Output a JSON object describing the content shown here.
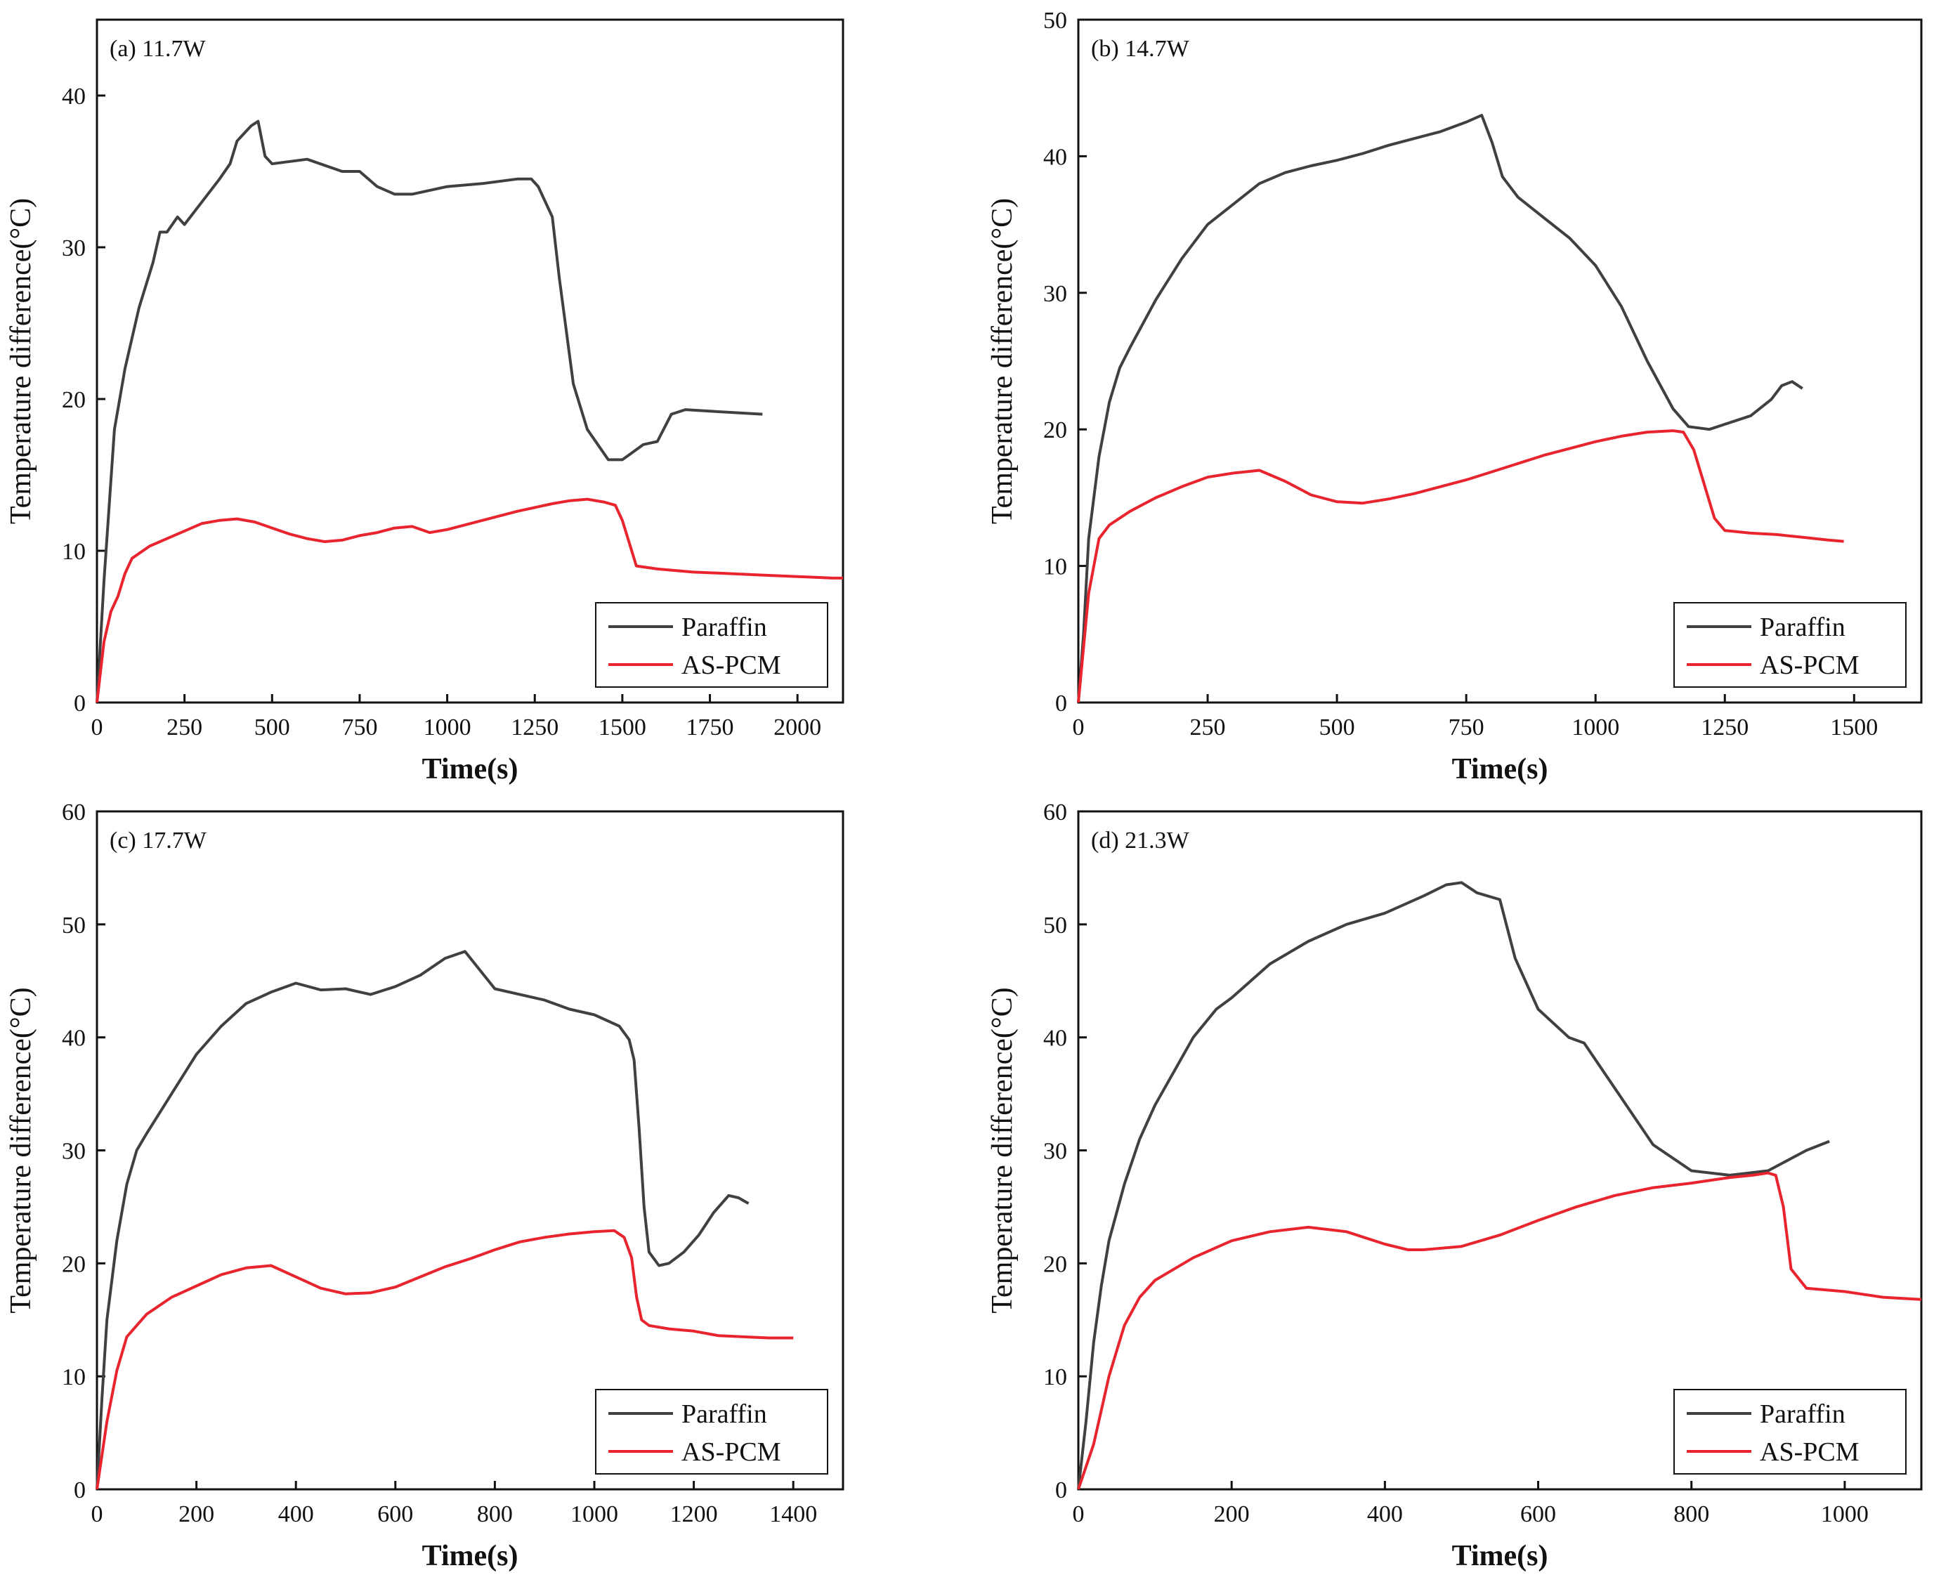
{
  "colors": {
    "paraffin": "#404040",
    "as_pcm": "#e8252e",
    "axis": "#111111"
  },
  "chart_data": [
    {
      "type": "line",
      "panel_label": "(a) 11.7W",
      "xlabel": "Time(s)",
      "ylabel": "Temperature difference(°C)",
      "xlim": [
        0,
        2130
      ],
      "ylim": [
        0,
        45
      ],
      "xticks": [
        0,
        250,
        500,
        750,
        1000,
        1250,
        1500,
        1750,
        2000
      ],
      "yticks": [
        0,
        10,
        20,
        30,
        40
      ],
      "legend": [
        "Paraffin",
        "AS-PCM"
      ],
      "series": [
        {
          "name": "Paraffin",
          "color": "#404040",
          "x": [
            0,
            20,
            50,
            80,
            120,
            160,
            180,
            200,
            230,
            250,
            300,
            350,
            380,
            400,
            420,
            440,
            460,
            480,
            500,
            600,
            700,
            750,
            800,
            850,
            900,
            1000,
            1100,
            1200,
            1240,
            1260,
            1300,
            1320,
            1360,
            1400,
            1460,
            1500,
            1560,
            1600,
            1640,
            1680,
            1750,
            1900
          ],
          "y": [
            0,
            8,
            18,
            22,
            26,
            29,
            31,
            31,
            32,
            31.5,
            33,
            34.5,
            35.5,
            37,
            37.5,
            38,
            38.3,
            36,
            35.5,
            35.8,
            35,
            35,
            34,
            33.5,
            33.5,
            34,
            34.2,
            34.5,
            34.5,
            34,
            32,
            28,
            21,
            18,
            16,
            16,
            17,
            17.2,
            19,
            19.3,
            19.2,
            19
          ]
        },
        {
          "name": "AS-PCM",
          "color": "#e8252e",
          "x": [
            0,
            20,
            40,
            60,
            80,
            100,
            150,
            200,
            250,
            300,
            350,
            400,
            450,
            500,
            550,
            600,
            650,
            700,
            750,
            800,
            850,
            900,
            950,
            1000,
            1100,
            1200,
            1300,
            1350,
            1400,
            1450,
            1480,
            1500,
            1520,
            1540,
            1600,
            1700,
            1800,
            1900,
            2000,
            2100,
            2130
          ],
          "y": [
            0,
            4,
            6,
            7,
            8.5,
            9.5,
            10.3,
            10.8,
            11.3,
            11.8,
            12,
            12.1,
            11.9,
            11.5,
            11.1,
            10.8,
            10.6,
            10.7,
            11,
            11.2,
            11.5,
            11.6,
            11.2,
            11.4,
            12,
            12.6,
            13.1,
            13.3,
            13.4,
            13.2,
            13,
            12,
            10.5,
            9,
            8.8,
            8.6,
            8.5,
            8.4,
            8.3,
            8.2,
            8.2
          ]
        }
      ]
    },
    {
      "type": "line",
      "panel_label": "(b) 14.7W",
      "xlabel": "Time(s)",
      "ylabel": "Temperature difference(°C)",
      "xlim": [
        0,
        1630
      ],
      "ylim": [
        0,
        50
      ],
      "xticks": [
        0,
        250,
        500,
        750,
        1000,
        1250,
        1500
      ],
      "yticks": [
        0,
        10,
        20,
        30,
        40,
        50
      ],
      "legend": [
        "Paraffin",
        "AS-PCM"
      ],
      "series": [
        {
          "name": "Paraffin",
          "color": "#404040",
          "x": [
            0,
            10,
            20,
            40,
            60,
            80,
            100,
            150,
            200,
            250,
            300,
            350,
            400,
            450,
            500,
            550,
            600,
            650,
            700,
            750,
            780,
            800,
            820,
            850,
            900,
            950,
            1000,
            1050,
            1100,
            1150,
            1180,
            1220,
            1260,
            1300,
            1340,
            1360,
            1380,
            1400
          ],
          "y": [
            0,
            5,
            12,
            18,
            22,
            24.5,
            26,
            29.5,
            32.5,
            35,
            36.5,
            38,
            38.8,
            39.3,
            39.7,
            40.2,
            40.8,
            41.3,
            41.8,
            42.5,
            43,
            41,
            38.5,
            37,
            35.5,
            34,
            32,
            29,
            25,
            21.5,
            20.2,
            20,
            20.5,
            21,
            22.2,
            23.2,
            23.5,
            23
          ]
        },
        {
          "name": "AS-PCM",
          "color": "#e8252e",
          "x": [
            0,
            20,
            40,
            60,
            80,
            100,
            150,
            200,
            250,
            300,
            350,
            400,
            450,
            500,
            550,
            600,
            650,
            700,
            750,
            800,
            850,
            900,
            950,
            1000,
            1050,
            1100,
            1150,
            1170,
            1190,
            1210,
            1230,
            1250,
            1300,
            1350,
            1400,
            1450,
            1480
          ],
          "y": [
            0,
            8,
            12,
            13,
            13.5,
            14,
            15,
            15.8,
            16.5,
            16.8,
            17,
            16.2,
            15.2,
            14.7,
            14.6,
            14.9,
            15.3,
            15.8,
            16.3,
            16.9,
            17.5,
            18.1,
            18.6,
            19.1,
            19.5,
            19.8,
            19.9,
            19.8,
            18.5,
            16,
            13.5,
            12.6,
            12.4,
            12.3,
            12.1,
            11.9,
            11.8
          ]
        }
      ]
    },
    {
      "type": "line",
      "panel_label": "(c) 17.7W",
      "xlabel": "Time(s)",
      "ylabel": "Temperature difference(°C)",
      "xlim": [
        0,
        1500
      ],
      "ylim": [
        0,
        60
      ],
      "xticks": [
        0,
        200,
        400,
        600,
        800,
        1000,
        1200,
        1400
      ],
      "yticks": [
        0,
        10,
        20,
        30,
        40,
        50,
        60
      ],
      "legend": [
        "Paraffin",
        "AS-PCM"
      ],
      "series": [
        {
          "name": "Paraffin",
          "color": "#404040",
          "x": [
            0,
            10,
            20,
            40,
            60,
            80,
            100,
            150,
            200,
            250,
            300,
            350,
            400,
            450,
            500,
            550,
            600,
            650,
            700,
            740,
            760,
            800,
            850,
            900,
            950,
            1000,
            1050,
            1070,
            1080,
            1090,
            1100,
            1110,
            1130,
            1150,
            1180,
            1210,
            1240,
            1270,
            1290,
            1310
          ],
          "y": [
            0,
            8,
            15,
            22,
            27,
            30,
            31.5,
            35,
            38.5,
            41,
            43,
            44,
            44.8,
            44.2,
            44.3,
            43.8,
            44.5,
            45.5,
            47,
            47.6,
            46.5,
            44.3,
            43.8,
            43.3,
            42.5,
            42,
            41,
            39.8,
            38,
            32,
            25,
            21,
            19.8,
            20,
            21,
            22.5,
            24.5,
            26,
            25.8,
            25.3
          ]
        },
        {
          "name": "AS-PCM",
          "color": "#e8252e",
          "x": [
            0,
            20,
            40,
            60,
            80,
            100,
            150,
            200,
            250,
            300,
            350,
            400,
            450,
            500,
            550,
            600,
            650,
            700,
            750,
            800,
            850,
            900,
            950,
            1000,
            1040,
            1060,
            1075,
            1085,
            1095,
            1110,
            1150,
            1200,
            1250,
            1300,
            1350,
            1400
          ],
          "y": [
            0,
            6,
            10.5,
            13.5,
            14.5,
            15.5,
            17,
            18,
            19,
            19.6,
            19.8,
            18.8,
            17.8,
            17.3,
            17.4,
            17.9,
            18.8,
            19.7,
            20.4,
            21.2,
            21.9,
            22.3,
            22.6,
            22.8,
            22.9,
            22.3,
            20.5,
            17,
            15,
            14.5,
            14.2,
            14,
            13.6,
            13.5,
            13.4,
            13.4
          ]
        }
      ]
    },
    {
      "type": "line",
      "panel_label": "(d) 21.3W",
      "xlabel": "Time(s)",
      "ylabel": "Temperature difference(°C)",
      "xlim": [
        0,
        1100
      ],
      "ylim": [
        0,
        60
      ],
      "xticks": [
        0,
        200,
        400,
        600,
        800,
        1000
      ],
      "yticks": [
        0,
        10,
        20,
        30,
        40,
        50,
        60
      ],
      "legend": [
        "Paraffin",
        "AS-PCM"
      ],
      "series": [
        {
          "name": "Paraffin",
          "color": "#404040",
          "x": [
            0,
            10,
            20,
            30,
            40,
            60,
            80,
            100,
            150,
            180,
            200,
            250,
            300,
            350,
            400,
            450,
            480,
            500,
            520,
            550,
            570,
            600,
            640,
            660,
            700,
            750,
            800,
            850,
            900,
            950,
            980
          ],
          "y": [
            0,
            6,
            13,
            18,
            22,
            27,
            31,
            34,
            40,
            42.5,
            43.5,
            46.5,
            48.5,
            50,
            51,
            52.5,
            53.5,
            53.7,
            52.8,
            52.2,
            47,
            42.5,
            40,
            39.5,
            35.5,
            30.5,
            28.2,
            27.8,
            28.2,
            30,
            30.8
          ]
        },
        {
          "name": "AS-PCM",
          "color": "#e8252e",
          "x": [
            0,
            20,
            40,
            60,
            80,
            100,
            150,
            200,
            250,
            300,
            350,
            400,
            430,
            450,
            500,
            550,
            600,
            650,
            700,
            750,
            800,
            850,
            880,
            900,
            910,
            920,
            930,
            950,
            1000,
            1050,
            1100
          ],
          "y": [
            0,
            4,
            10,
            14.5,
            17,
            18.5,
            20.5,
            22,
            22.8,
            23.2,
            22.8,
            21.7,
            21.2,
            21.2,
            21.5,
            22.5,
            23.8,
            25,
            26,
            26.7,
            27.1,
            27.6,
            27.8,
            28,
            27.8,
            25,
            19.5,
            17.8,
            17.5,
            17,
            16.8
          ]
        }
      ]
    }
  ]
}
